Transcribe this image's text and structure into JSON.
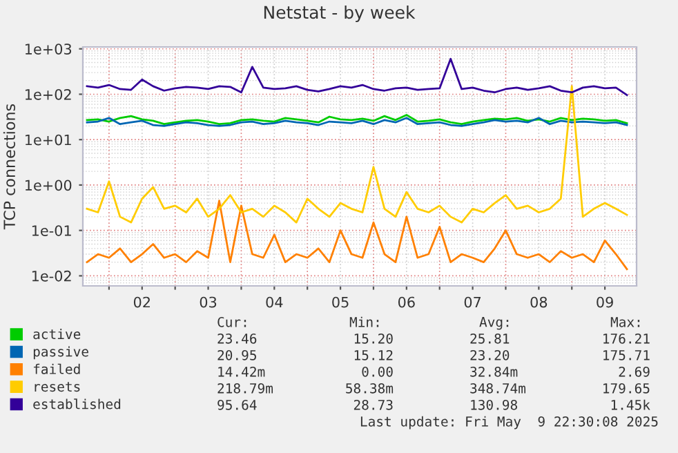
{
  "chart_data": {
    "type": "line",
    "title": "Netstat - by week",
    "ylabel": "TCP connections",
    "log": "y",
    "grid": true,
    "legend": "bottom",
    "xlim": [
      "2025-05-01T14:30",
      "2025-05-09T23:30"
    ],
    "xticks": [
      {
        "value": "2025-05-02T00:00",
        "label": null
      },
      {
        "value": "2025-05-02T12:00",
        "label": "02"
      },
      {
        "value": "2025-05-03T00:00",
        "label": null
      },
      {
        "value": "2025-05-03T12:00",
        "label": "03"
      },
      {
        "value": "2025-05-04T00:00",
        "label": null
      },
      {
        "value": "2025-05-04T12:00",
        "label": "04"
      },
      {
        "value": "2025-05-05T00:00",
        "label": null
      },
      {
        "value": "2025-05-05T12:00",
        "label": "05"
      },
      {
        "value": "2025-05-06T00:00",
        "label": null
      },
      {
        "value": "2025-05-06T12:00",
        "label": "06"
      },
      {
        "value": "2025-05-07T00:00",
        "label": null
      },
      {
        "value": "2025-05-07T12:00",
        "label": "07"
      },
      {
        "value": "2025-05-08T00:00",
        "label": null
      },
      {
        "value": "2025-05-08T12:00",
        "label": "08"
      },
      {
        "value": "2025-05-09T00:00",
        "label": null
      },
      {
        "value": "2025-05-09T12:00",
        "label": "09"
      }
    ],
    "ylim": [
      0.006,
      1100
    ],
    "yticks": [
      {
        "value": 0.01,
        "label": "1e-02"
      },
      {
        "value": 0.1,
        "label": "1e-01"
      },
      {
        "value": 1,
        "label": "1e+00"
      },
      {
        "value": 10,
        "label": "1e+01"
      },
      {
        "value": 100,
        "label": "1e+02"
      },
      {
        "value": 1000,
        "label": "1e+03"
      }
    ],
    "x": [
      "2025-05-01T16:00",
      "2025-05-01T20:00",
      "2025-05-02T00:00",
      "2025-05-02T04:00",
      "2025-05-02T08:00",
      "2025-05-02T12:00",
      "2025-05-02T16:00",
      "2025-05-02T20:00",
      "2025-05-03T00:00",
      "2025-05-03T04:00",
      "2025-05-03T08:00",
      "2025-05-03T12:00",
      "2025-05-03T16:00",
      "2025-05-03T20:00",
      "2025-05-04T00:00",
      "2025-05-04T04:00",
      "2025-05-04T08:00",
      "2025-05-04T12:00",
      "2025-05-04T16:00",
      "2025-05-04T20:00",
      "2025-05-05T00:00",
      "2025-05-05T04:00",
      "2025-05-05T08:00",
      "2025-05-05T12:00",
      "2025-05-05T16:00",
      "2025-05-05T20:00",
      "2025-05-06T00:00",
      "2025-05-06T04:00",
      "2025-05-06T08:00",
      "2025-05-06T12:00",
      "2025-05-06T16:00",
      "2025-05-06T20:00",
      "2025-05-07T00:00",
      "2025-05-07T04:00",
      "2025-05-07T08:00",
      "2025-05-07T12:00",
      "2025-05-07T16:00",
      "2025-05-07T20:00",
      "2025-05-08T00:00",
      "2025-05-08T04:00",
      "2025-05-08T08:00",
      "2025-05-08T12:00",
      "2025-05-08T16:00",
      "2025-05-08T20:00",
      "2025-05-09T00:00",
      "2025-05-09T04:00",
      "2025-05-09T08:00",
      "2025-05-09T12:00",
      "2025-05-09T16:00",
      "2025-05-09T20:00"
    ],
    "series": [
      {
        "name": "active",
        "color": "#00cc00",
        "values": [
          27,
          28,
          25,
          30,
          33,
          28,
          26,
          22,
          24,
          26,
          27,
          25,
          22,
          23,
          27,
          28,
          26,
          25,
          30,
          28,
          26,
          24,
          32,
          28,
          27,
          29,
          26,
          33,
          27,
          35,
          25,
          26,
          28,
          24,
          22,
          25,
          27,
          29,
          28,
          30,
          26,
          28,
          25,
          30,
          27,
          29,
          28,
          26,
          27,
          23
        ]
      },
      {
        "name": "passive",
        "color": "#0066b3",
        "values": [
          24,
          25,
          30,
          22,
          24,
          26,
          21,
          20,
          22,
          24,
          23,
          21,
          20,
          21,
          24,
          25,
          22,
          23,
          26,
          24,
          23,
          21,
          25,
          24,
          23,
          26,
          22,
          27,
          24,
          30,
          22,
          23,
          24,
          21,
          20,
          22,
          24,
          27,
          25,
          26,
          24,
          30,
          22,
          26,
          24,
          25,
          24,
          23,
          24,
          21
        ]
      },
      {
        "name": "failed",
        "color": "#ff8000",
        "values": [
          0.02,
          0.03,
          0.025,
          0.04,
          0.02,
          0.03,
          0.05,
          0.025,
          0.03,
          0.02,
          0.035,
          0.025,
          0.45,
          0.02,
          0.35,
          0.03,
          0.025,
          0.08,
          0.02,
          0.03,
          0.025,
          0.04,
          0.02,
          0.1,
          0.03,
          0.025,
          0.15,
          0.03,
          0.02,
          0.2,
          0.025,
          0.03,
          0.12,
          0.02,
          0.03,
          0.025,
          0.02,
          0.04,
          0.1,
          0.03,
          0.025,
          0.03,
          0.02,
          0.035,
          0.025,
          0.03,
          0.02,
          0.06,
          0.03,
          0.014
        ]
      },
      {
        "name": "resets",
        "color": "#ffcc00",
        "values": [
          0.3,
          0.25,
          1.2,
          0.2,
          0.15,
          0.5,
          0.9,
          0.3,
          0.35,
          0.25,
          0.5,
          0.2,
          0.3,
          0.6,
          0.25,
          0.3,
          0.2,
          0.35,
          0.25,
          0.15,
          0.5,
          0.3,
          0.2,
          0.4,
          0.3,
          0.25,
          2.5,
          0.3,
          0.2,
          0.7,
          0.3,
          0.25,
          0.35,
          0.2,
          0.15,
          0.3,
          0.25,
          0.4,
          0.6,
          0.3,
          0.35,
          0.25,
          0.3,
          0.5,
          150,
          0.2,
          0.3,
          0.4,
          0.3,
          0.22
        ]
      },
      {
        "name": "established",
        "color": "#330099",
        "values": [
          150,
          140,
          160,
          130,
          125,
          210,
          150,
          120,
          135,
          145,
          140,
          130,
          150,
          145,
          110,
          400,
          140,
          130,
          135,
          150,
          125,
          115,
          130,
          150,
          140,
          160,
          130,
          120,
          135,
          140,
          125,
          130,
          135,
          600,
          130,
          140,
          120,
          110,
          130,
          140,
          125,
          135,
          150,
          120,
          110,
          140,
          150,
          135,
          140,
          96
        ]
      }
    ],
    "annotations": [
      "Cur:",
      "Min:",
      "Avg:",
      "Max:",
      "23.46",
      "15.20",
      "25.81",
      "176.21",
      "20.95",
      "15.12",
      "23.20",
      "175.71",
      "14.42m",
      "0.00",
      "32.84m",
      "2.69",
      "218.79m",
      "58.38m",
      "348.74m",
      "179.65",
      "95.64",
      "28.73",
      "130.98",
      "1.45k",
      "Last update: Fri May  9 22:30:08 2025"
    ]
  }
}
